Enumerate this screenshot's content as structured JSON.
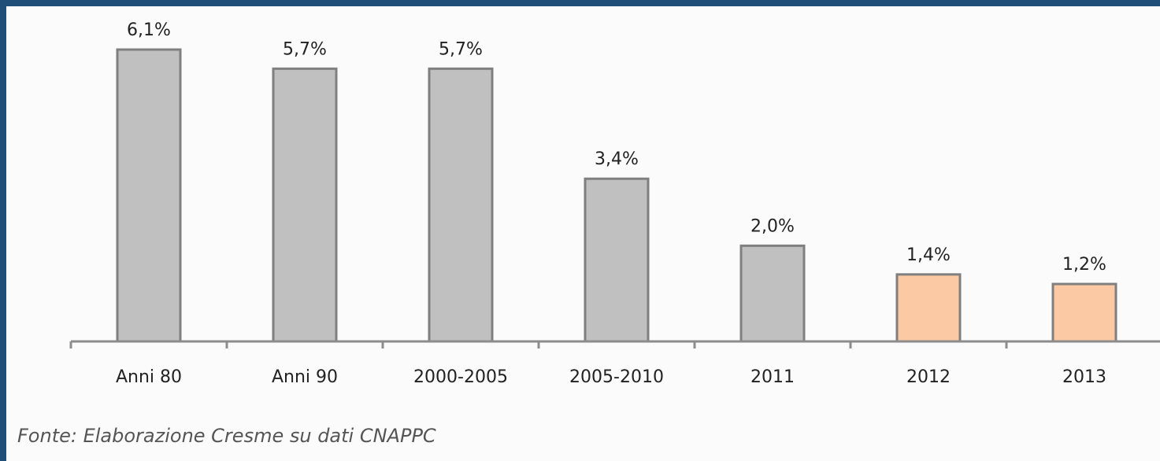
{
  "chart_data": {
    "type": "bar",
    "categories": [
      "Anni 80",
      "Anni 90",
      "2000-2005",
      "2005-2010",
      "2011",
      "2012",
      "2013"
    ],
    "values": [
      6.1,
      5.7,
      5.7,
      3.4,
      2.0,
      1.4,
      1.2
    ],
    "value_labels": [
      "6,1%",
      "5,7%",
      "5,7%",
      "3,4%",
      "2,0%",
      "1,4%",
      "1,2%"
    ],
    "bar_colors": [
      "#c0c0c0",
      "#c0c0c0",
      "#c0c0c0",
      "#c0c0c0",
      "#c0c0c0",
      "#fbcaa4",
      "#fbcaa4"
    ],
    "bar_border_color": "#7f7f7f",
    "axis_color": "#8c8c8c",
    "ylim": [
      0,
      6.1
    ],
    "grid": false,
    "legend": "none"
  },
  "source_note": "Fonte: Elaborazione Cresme su dati CNAPPC",
  "colors": {
    "frame": "#1f4e79",
    "background": "#fbfbfb",
    "text": "#222222"
  }
}
